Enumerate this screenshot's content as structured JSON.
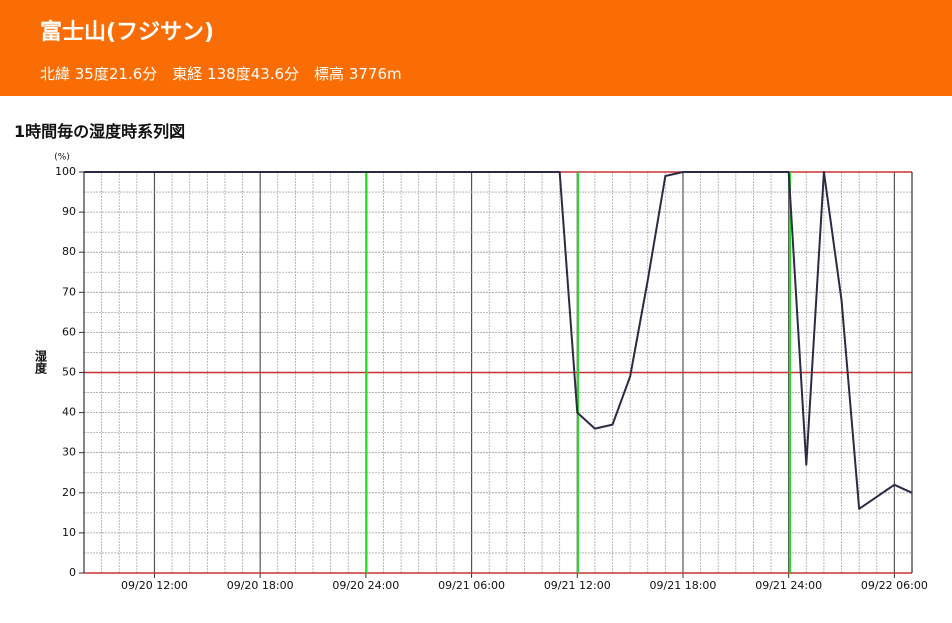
{
  "header": {
    "title": "富士山(フジサン)",
    "subtitle": "北緯 35度21.6分　東経 138度43.6分　標高 3776m"
  },
  "chart_data": {
    "type": "line",
    "title": "1時間毎の湿度時系列図",
    "y_label": "湿度",
    "y_unit": "(%)",
    "categories": [
      null,
      null,
      null,
      null,
      "09/20 12:00",
      null,
      null,
      null,
      null,
      null,
      "09/20 18:00",
      null,
      null,
      null,
      null,
      null,
      "09/20 24:00",
      null,
      null,
      null,
      null,
      null,
      "09/21 06:00",
      null,
      null,
      null,
      null,
      null,
      "09/21 12:00",
      null,
      null,
      null,
      null,
      null,
      "09/21 18:00",
      null,
      null,
      null,
      null,
      null,
      "09/21 24:00",
      null,
      null,
      null,
      null,
      null,
      "09/22 06:00",
      null
    ],
    "series": [
      {
        "name": "湿度",
        "color": "#2b2b45",
        "values": [
          100,
          100,
          100,
          100,
          100,
          100,
          100,
          100,
          100,
          100,
          100,
          100,
          100,
          100,
          100,
          100,
          100,
          100,
          100,
          100,
          100,
          100,
          100,
          100,
          100,
          100,
          100,
          100,
          40,
          36,
          37,
          49,
          73,
          99,
          100,
          100,
          100,
          100,
          100,
          100,
          100,
          27,
          100,
          68,
          16,
          19,
          22,
          20
        ]
      }
    ],
    "ylim": [
      0,
      100
    ],
    "yticks": [
      0,
      10,
      20,
      30,
      40,
      50,
      60,
      70,
      80,
      90,
      100
    ],
    "grid": true
  }
}
